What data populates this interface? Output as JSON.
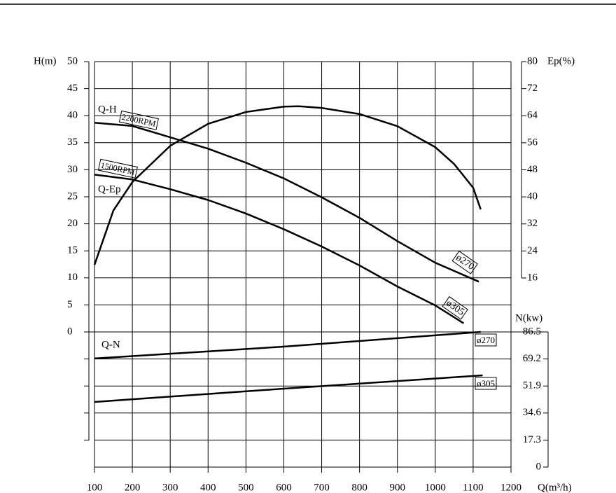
{
  "chart_data": {
    "type": "line",
    "xlabel": "Q(m³/h)",
    "ylabel": "H(m)",
    "y2label": "Ep(%)",
    "y3label": "N(kw)",
    "color": "#000000",
    "grid": true,
    "xlim": [
      100,
      1200
    ],
    "xticks": [
      100,
      200,
      300,
      400,
      500,
      600,
      700,
      800,
      900,
      1000,
      1100,
      1200
    ],
    "ylim": [
      0,
      50
    ],
    "yticks": [
      0,
      5,
      10,
      15,
      20,
      25,
      30,
      35,
      40,
      45,
      50
    ],
    "y2lim": [
      16,
      80
    ],
    "y2ticks": [
      16,
      24,
      32,
      40,
      48,
      56,
      64,
      72,
      80
    ],
    "y3lim": [
      0,
      86.5
    ],
    "y3ticks": [
      0,
      17.3,
      34.6,
      51.9,
      69.2,
      86.5
    ],
    "annotations": [
      "Q-H",
      "Q-N",
      "ø270",
      "ø305"
    ],
    "series": [
      {
        "name": "2200RPM",
        "axis": "y",
        "x": [
          100,
          200,
          300,
          400,
          500,
          600,
          700,
          800,
          900,
          1000,
          1115
        ],
        "values": [
          38.7,
          38.1,
          36.0,
          33.9,
          31.3,
          28.4,
          24.9,
          21.1,
          16.8,
          12.8,
          9.3
        ]
      },
      {
        "name": "1500RPM",
        "axis": "y",
        "x": [
          100,
          200,
          300,
          400,
          500,
          600,
          700,
          800,
          900,
          1000,
          1075
        ],
        "values": [
          29.1,
          28.2,
          26.4,
          24.4,
          21.9,
          19.0,
          15.8,
          12.3,
          8.4,
          4.9,
          1.6
        ]
      },
      {
        "name": "Q-Ep",
        "axis": "y2",
        "x": [
          100,
          150,
          200,
          300,
          400,
          500,
          600,
          640,
          700,
          800,
          900,
          1000,
          1050,
          1100,
          1120
        ],
        "values": [
          19.9,
          36,
          44.4,
          55.1,
          61.6,
          65.1,
          66.7,
          66.8,
          66.3,
          64.5,
          60.9,
          54.7,
          49.7,
          42.7,
          36.3
        ]
      },
      {
        "name": "ø270",
        "axis": "y3",
        "x": [
          100,
          600,
          1120
        ],
        "values": [
          69.5,
          77.1,
          86.5
        ]
      },
      {
        "name": "ø305",
        "axis": "y3",
        "x": [
          100,
          600,
          1125
        ],
        "values": [
          41.7,
          50.2,
          58.7
        ]
      }
    ]
  }
}
